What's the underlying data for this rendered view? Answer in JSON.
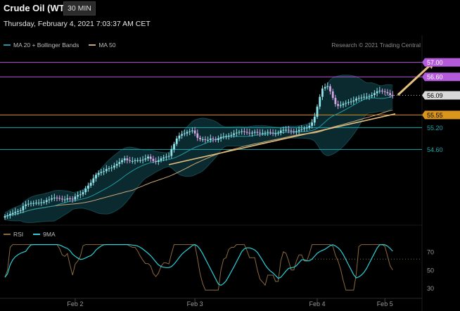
{
  "header": {
    "title": "Crude Oil (WTI)",
    "interval": "30 MIN",
    "timestamp": "Thursday, February 4, 2021 7:03:37 AM CET",
    "credit": "Research © 2021 Trading Central"
  },
  "colors": {
    "up": "#8fe3ea",
    "down": "#d6a6e6",
    "ma20": "#1f9aa2",
    "ma50": "#c7a77a",
    "band_fill": "#0b2a2f",
    "purple": "#b45bdb",
    "orange": "#d9951c",
    "teal": "#1fa6ad",
    "rsi": "#8a6a3c",
    "rsi_ma": "#2bd0d8",
    "trend": "#e3c07f"
  },
  "chart_data": [
    {
      "type": "candlestick",
      "legend": [
        {
          "label": "MA 20 + Bollinger Bands",
          "color": "#1f9aa2"
        },
        {
          "label": "MA 50",
          "color": "#c7a77a"
        }
      ],
      "ylim": [
        52.55,
        57.4
      ],
      "x_ticks": [
        {
          "label": "Feb 2",
          "index": 27
        },
        {
          "label": "Feb 3",
          "index": 73
        },
        {
          "label": "Feb 4",
          "index": 120
        },
        {
          "label": "Feb 5",
          "index": 146
        }
      ],
      "levels": [
        {
          "label": "57.00",
          "value": 57.0,
          "style": "purple-box"
        },
        {
          "label": "56.60",
          "value": 56.6,
          "style": "purple-box"
        },
        {
          "label": "56.09",
          "value": 56.09,
          "style": "white-box"
        },
        {
          "label": "55.55",
          "value": 55.55,
          "style": "orange-box"
        },
        {
          "label": "55.20",
          "value": 55.2,
          "style": "teal-text"
        },
        {
          "label": "54.60",
          "value": 54.6,
          "style": "teal-text"
        }
      ],
      "trendline": {
        "from": [
          63,
          54.18
        ],
        "to": [
          150,
          55.58
        ]
      },
      "arrow": {
        "from": [
          151,
          56.1
        ],
        "to": [
          165,
          57.0
        ]
      },
      "closes": [
        52.76,
        52.78,
        52.82,
        52.85,
        52.88,
        52.9,
        52.92,
        53.04,
        53.08,
        53.1,
        53.12,
        53.12,
        53.13,
        53.13,
        53.14,
        53.15,
        53.2,
        53.22,
        53.25,
        53.27,
        53.26,
        53.24,
        53.22,
        53.22,
        53.25,
        53.24,
        53.22,
        53.3,
        53.34,
        53.36,
        53.42,
        53.52,
        53.6,
        53.68,
        53.8,
        53.9,
        53.95,
        53.98,
        54.0,
        54.06,
        54.08,
        54.1,
        54.15,
        54.2,
        54.25,
        54.3,
        54.35,
        54.3,
        54.28,
        54.28,
        54.3,
        54.3,
        54.3,
        54.32,
        54.35,
        54.4,
        54.34,
        54.28,
        54.26,
        54.3,
        54.35,
        54.38,
        54.4,
        54.42,
        54.6,
        54.75,
        54.9,
        54.98,
        55.02,
        55.04,
        55.08,
        55.1,
        55.12,
        55.04,
        54.92,
        54.88,
        54.88,
        54.86,
        54.86,
        54.9,
        54.88,
        54.86,
        54.9,
        54.94,
        54.95,
        54.96,
        54.98,
        55.0,
        55.04,
        55.06,
        55.08,
        55.1,
        55.08,
        55.06,
        55.04,
        55.06,
        55.08,
        55.06,
        55.04,
        55.05,
        55.06,
        55.08,
        55.06,
        55.04,
        55.04,
        55.06,
        55.12,
        55.14,
        55.14,
        55.12,
        55.1,
        55.08,
        55.1,
        55.14,
        55.16,
        55.18,
        55.2,
        55.25,
        55.34,
        55.5,
        55.78,
        56.05,
        56.28,
        56.32,
        56.34,
        56.2,
        56.02,
        55.85,
        55.8,
        55.82,
        55.86,
        55.88,
        55.9,
        55.92,
        55.95,
        56.0,
        56.02,
        56.03,
        56.05,
        56.05,
        56.07,
        56.1,
        56.15,
        56.2,
        56.22,
        56.2,
        56.18,
        56.15,
        56.1,
        56.09
      ],
      "series": [
        {
          "name": "MA 20"
        },
        {
          "name": "MA 50"
        }
      ]
    },
    {
      "type": "line",
      "legend": [
        {
          "label": "RSI",
          "color": "#8a6a3c"
        },
        {
          "label": "9MA",
          "color": "#2bd0d8"
        }
      ],
      "ylim": [
        22,
        80
      ],
      "y_ticks": [
        {
          "label": "70",
          "value": 70
        },
        {
          "label": "50",
          "value": 50
        },
        {
          "label": "30",
          "value": 30
        }
      ],
      "reference_line": 62,
      "series": [
        {
          "name": "RSI"
        },
        {
          "name": "9MA"
        }
      ]
    }
  ]
}
